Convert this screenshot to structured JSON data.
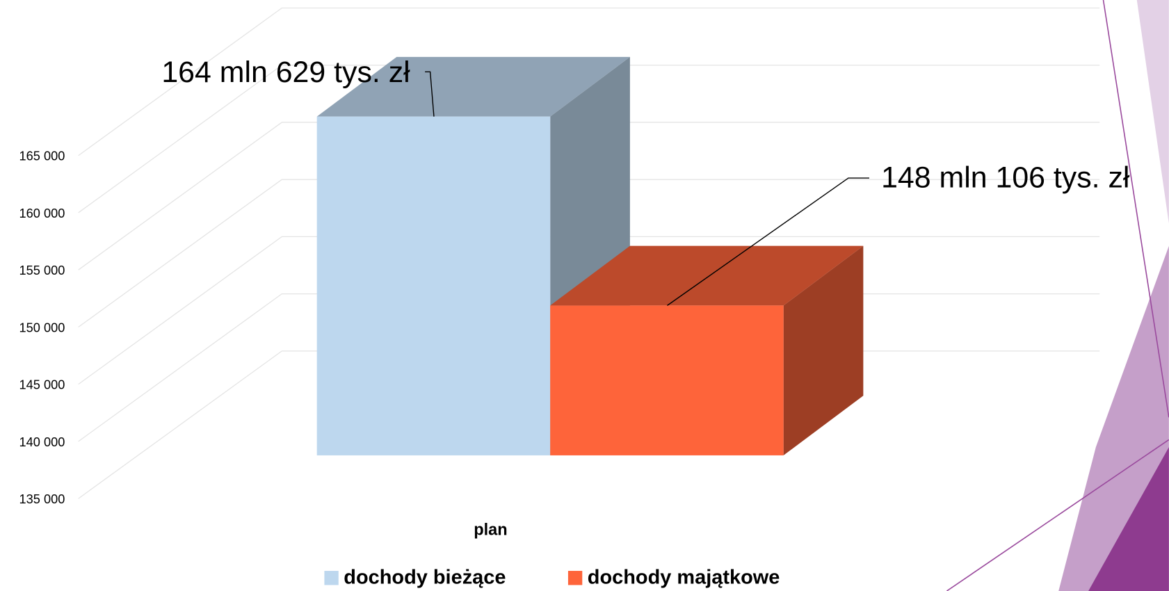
{
  "chart_data": {
    "type": "bar3d",
    "categories": [
      "plan"
    ],
    "series": [
      {
        "name": "dochody bieżące",
        "color": "#bdd7ee",
        "values": [
          164629
        ],
        "value_labels": [
          "164 mln 629 tys. zł"
        ]
      },
      {
        "name": "dochody majątkowe",
        "color": "#fe643a",
        "values": [
          148106
        ],
        "value_labels": [
          "148 mln 106 tys. zł"
        ]
      }
    ],
    "ylim": [
      135000,
      170000
    ],
    "yticks": [
      {
        "value": 135000,
        "label": "135 000"
      },
      {
        "value": 140000,
        "label": "140 000"
      },
      {
        "value": 145000,
        "label": "145 000"
      },
      {
        "value": 150000,
        "label": "150 000"
      },
      {
        "value": 155000,
        "label": "155 000"
      },
      {
        "value": 160000,
        "label": "160 000"
      },
      {
        "value": 165000,
        "label": "165 000"
      }
    ],
    "grid": true,
    "legend": "bottom"
  }
}
